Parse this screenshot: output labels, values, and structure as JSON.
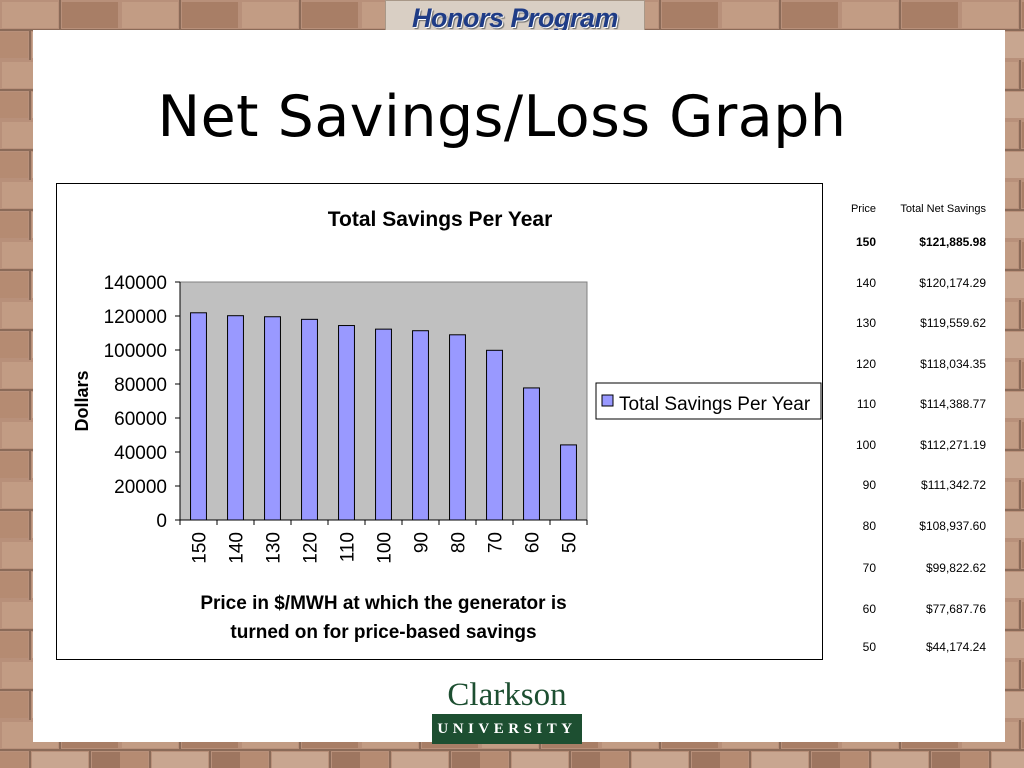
{
  "banner": {
    "text": "Honors Program"
  },
  "slide": {
    "title": "Net Savings/Loss Graph"
  },
  "logo": {
    "name": "Clarkson",
    "subtitle": "UNIVERSITY"
  },
  "colors": {
    "bar_fill": "#9999ff",
    "plot_bg": "#c0c0c0",
    "logo_green": "#1d4f31",
    "banner_text": "#1f3c86"
  },
  "chart_data": {
    "type": "bar",
    "title": "Total Savings Per Year",
    "xlabel": "Price in $/MWH at which the generator is turned on for price-based savings",
    "xlabel_lines": [
      "Price in $/MWH at which the generator is",
      "turned on for price-based savings"
    ],
    "ylabel": "Dollars",
    "categories": [
      "150",
      "140",
      "130",
      "120",
      "110",
      "100",
      "90",
      "80",
      "70",
      "60",
      "50"
    ],
    "series": [
      {
        "name": "Total Savings Per Year",
        "values": [
          121885.98,
          120174.29,
          119559.62,
          118034.35,
          114388.77,
          112271.19,
          111342.72,
          108937.6,
          99822.62,
          77687.76,
          44174.24
        ]
      }
    ],
    "ylim": [
      0,
      140000
    ],
    "yticks": [
      "0",
      "20000",
      "40000",
      "60000",
      "80000",
      "100000",
      "120000",
      "140000"
    ],
    "grid": false,
    "legend": "right"
  },
  "table": {
    "headers": [
      "Price",
      "Total Net Savings"
    ],
    "rows": [
      {
        "price": "150",
        "savings": "$121,885.98",
        "bold": true
      },
      {
        "price": "140",
        "savings": "$120,174.29"
      },
      {
        "price": "130",
        "savings": "$119,559.62"
      },
      {
        "price": "120",
        "savings": "$118,034.35"
      },
      {
        "price": "110",
        "savings": "$114,388.77"
      },
      {
        "price": "100",
        "savings": "$112,271.19"
      },
      {
        "price": "90",
        "savings": "$111,342.72"
      },
      {
        "price": "80",
        "savings": "$108,937.60"
      },
      {
        "price": "70",
        "savings": "$99,822.62"
      },
      {
        "price": "60",
        "savings": "$77,687.76"
      },
      {
        "price": "50",
        "savings": "$44,174.24"
      }
    ]
  }
}
